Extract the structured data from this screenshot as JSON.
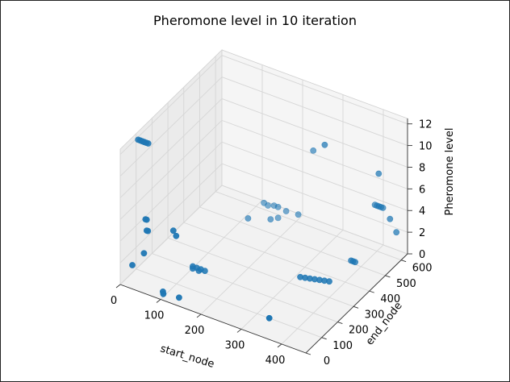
{
  "chart_data": {
    "type": "scatter",
    "title": "Pheromone level in 10 iteration",
    "xlabel": "start_node",
    "ylabel": "end_node",
    "zlabel": "Pheromone level",
    "xlim": [
      0,
      460
    ],
    "ylim": [
      0,
      640
    ],
    "zlim": [
      0,
      12.5
    ],
    "xticks": [
      0,
      100,
      200,
      300,
      400
    ],
    "yticks": [
      0,
      100,
      200,
      300,
      400,
      500,
      600
    ],
    "zticks": [
      0,
      2,
      4,
      6,
      8,
      10,
      12
    ],
    "grid": true,
    "marker_color": "#1f77b4",
    "pane_color": "#f2f2f2",
    "projection": "3d",
    "points": [
      {
        "x": 5,
        "y": 100,
        "z": 12.0
      },
      {
        "x": 10,
        "y": 100,
        "z": 12.0
      },
      {
        "x": 15,
        "y": 100,
        "z": 12.0
      },
      {
        "x": 20,
        "y": 100,
        "z": 12.0
      },
      {
        "x": 25,
        "y": 100,
        "z": 12.0
      },
      {
        "x": 30,
        "y": 100,
        "z": 12.0
      },
      {
        "x": 35,
        "y": 70,
        "z": 5.5
      },
      {
        "x": 38,
        "y": 70,
        "z": 5.5
      },
      {
        "x": 40,
        "y": 65,
        "z": 4.6
      },
      {
        "x": 43,
        "y": 65,
        "z": 4.6
      },
      {
        "x": 100,
        "y": 80,
        "z": 5.2
      },
      {
        "x": 115,
        "y": 60,
        "z": 5.2
      },
      {
        "x": 45,
        "y": 35,
        "z": 3.0
      },
      {
        "x": 120,
        "y": 600,
        "z": 0.6
      },
      {
        "x": 130,
        "y": 600,
        "z": 0.5
      },
      {
        "x": 145,
        "y": 600,
        "z": 0.7
      },
      {
        "x": 155,
        "y": 600,
        "z": 0.7
      },
      {
        "x": 175,
        "y": 600,
        "z": 0.6
      },
      {
        "x": 205,
        "y": 600,
        "z": 0.7
      },
      {
        "x": 155,
        "y": 600,
        "z": -0.3
      },
      {
        "x": 120,
        "y": 500,
        "z": 0.6
      },
      {
        "x": 160,
        "y": 540,
        "z": 0.5
      },
      {
        "x": 105,
        "y": 190,
        "z": 0.4
      },
      {
        "x": 105,
        "y": 190,
        "z": 0.2
      },
      {
        "x": 115,
        "y": 190,
        "z": 0.4
      },
      {
        "x": 120,
        "y": 190,
        "z": 0.2
      },
      {
        "x": 125,
        "y": 190,
        "z": 0.4
      },
      {
        "x": 135,
        "y": 190,
        "z": 0.4
      },
      {
        "x": 30,
        "y": 0,
        "z": 2.2
      },
      {
        "x": 90,
        "y": 40,
        "z": 0.0
      },
      {
        "x": 95,
        "y": 30,
        "z": 0.0
      },
      {
        "x": 130,
        "y": 40,
        "z": 0.0
      },
      {
        "x": 250,
        "y": 580,
        "z": 7.5
      },
      {
        "x": 310,
        "y": 500,
        "z": 10.0
      },
      {
        "x": 420,
        "y": 560,
        "z": 8.0
      },
      {
        "x": 395,
        "y": 600,
        "z": 4.2
      },
      {
        "x": 400,
        "y": 600,
        "z": 4.2
      },
      {
        "x": 405,
        "y": 600,
        "z": 4.2
      },
      {
        "x": 410,
        "y": 600,
        "z": 4.2
      },
      {
        "x": 415,
        "y": 600,
        "z": 4.2
      },
      {
        "x": 448,
        "y": 560,
        "z": 4.2
      },
      {
        "x": 456,
        "y": 580,
        "z": 2.8
      },
      {
        "x": 395,
        "y": 450,
        "z": 1.2
      },
      {
        "x": 400,
        "y": 450,
        "z": 1.2
      },
      {
        "x": 405,
        "y": 450,
        "z": 1.2
      },
      {
        "x": 330,
        "y": 295,
        "z": 1.0
      },
      {
        "x": 340,
        "y": 300,
        "z": 1.0
      },
      {
        "x": 350,
        "y": 305,
        "z": 1.0
      },
      {
        "x": 360,
        "y": 310,
        "z": 1.0
      },
      {
        "x": 370,
        "y": 315,
        "z": 1.0
      },
      {
        "x": 380,
        "y": 320,
        "z": 1.0
      },
      {
        "x": 390,
        "y": 325,
        "z": 1.0
      },
      {
        "x": 330,
        "y": 100,
        "z": 0.0
      }
    ]
  }
}
